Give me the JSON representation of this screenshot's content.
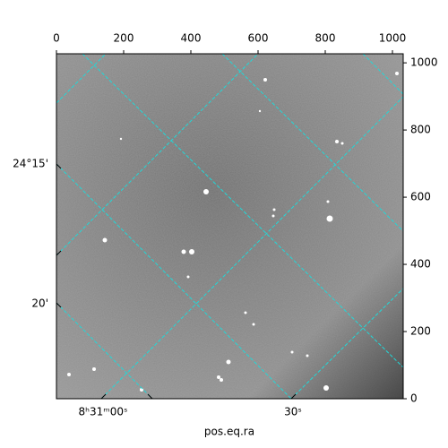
{
  "chart_data": {
    "type": "image",
    "xlabel": "pos.eq.ra",
    "xlim": [
      0,
      1032
    ],
    "ylim": [
      0,
      1027
    ],
    "xticks": [
      0,
      200,
      400,
      600,
      800,
      1000
    ],
    "yticks": [
      0,
      200,
      400,
      600,
      800,
      1000
    ],
    "ra_ticks": [
      "8ʰ31ᵐ00ˢ",
      "30ˢ"
    ],
    "dec_ticks": [
      "24°15'",
      "20'"
    ]
  }
}
